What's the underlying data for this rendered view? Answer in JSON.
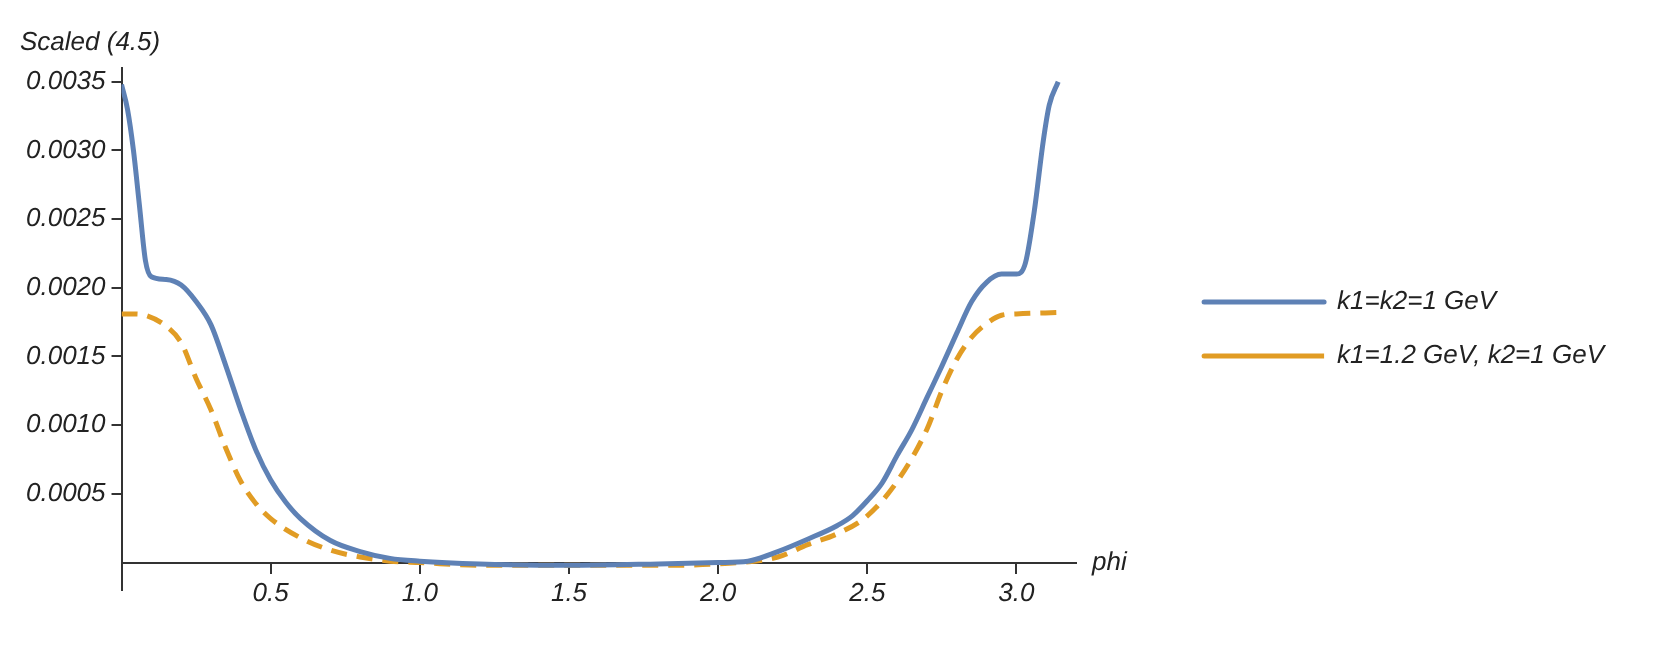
{
  "chart_data": {
    "type": "line",
    "ylabel": "Scaled (4.5)",
    "xlabel": "phi",
    "xlim": [
      0,
      3.2
    ],
    "xticks": [
      0.5,
      {
        "value": 1,
        "label": "1.0"
      },
      1.5,
      {
        "value": 2,
        "label": "2.0"
      },
      2.5,
      {
        "value": 3,
        "label": "3.0"
      }
    ],
    "ylim": [
      -0.0002,
      0.0036
    ],
    "yticks": [
      0.0005,
      {
        "value": 0.001,
        "label": "0.0010"
      },
      0.0015,
      {
        "value": 0.002,
        "label": "0.0020"
      },
      0.0025,
      {
        "value": 0.003,
        "label": "0.0030"
      },
      0.0035
    ],
    "grid": false,
    "legend": "right",
    "marker": "none",
    "series": [
      {
        "name": "k1=k2=1 GeV",
        "color": "#5e81b5",
        "line_style": "solid",
        "x": [
          0,
          0.02,
          0.04,
          0.06,
          0.08,
          0.1,
          0.15,
          0.2,
          0.25,
          0.3,
          0.35,
          0.4,
          0.45,
          0.5,
          0.55,
          0.6,
          0.7,
          0.8,
          0.9,
          1.0,
          1.2,
          1.5,
          1.8,
          2.0,
          2.1,
          2.2,
          2.3,
          2.4,
          2.45,
          2.5,
          2.55,
          2.6,
          2.65,
          2.7,
          2.75,
          2.8,
          2.85,
          2.9,
          2.95,
          3.0,
          3.03,
          3.06,
          3.09,
          3.11,
          3.14
        ],
        "values": [
          0.00348,
          0.0033,
          0.003,
          0.0026,
          0.0022,
          0.00208,
          0.00206,
          0.00202,
          0.0019,
          0.00173,
          0.00143,
          0.00111,
          0.00082,
          0.0006,
          0.00044,
          0.00032,
          0.00016,
          8e-05,
          3e-05,
          1e-05,
          -1e-05,
          -2e-05,
          -1e-05,
          0,
          1e-05,
          8e-05,
          0.00017,
          0.00027,
          0.00034,
          0.00045,
          0.00058,
          0.00078,
          0.00097,
          0.0012,
          0.00143,
          0.00167,
          0.0019,
          0.00204,
          0.0021,
          0.0021,
          0.00218,
          0.00256,
          0.00307,
          0.00333,
          0.0035
        ]
      },
      {
        "name": "k1=1.2 GeV, k2=1 GeV",
        "color": "#e19c24",
        "line_style": "dashed",
        "x": [
          0,
          0.04,
          0.08,
          0.15,
          0.2,
          0.25,
          0.3,
          0.35,
          0.4,
          0.45,
          0.5,
          0.6,
          0.7,
          0.8,
          0.9,
          1.0,
          1.2,
          1.5,
          1.8,
          2.0,
          2.2,
          2.3,
          2.4,
          2.5,
          2.6,
          2.7,
          2.75,
          2.8,
          2.85,
          2.9,
          2.95,
          3.0,
          3.14
        ],
        "values": [
          0.00181,
          0.00181,
          0.0018,
          0.00172,
          0.0016,
          0.00134,
          0.00111,
          0.00083,
          0.00059,
          0.00043,
          0.00032,
          0.00018,
          9e-05,
          4e-05,
          1e-05,
          0,
          -2e-05,
          -2e-05,
          -2e-05,
          -1e-05,
          4e-05,
          0.00013,
          0.00021,
          0.00034,
          0.00059,
          0.00097,
          0.00125,
          0.00148,
          0.00164,
          0.00174,
          0.0018,
          0.00181,
          0.00182
        ]
      }
    ]
  }
}
